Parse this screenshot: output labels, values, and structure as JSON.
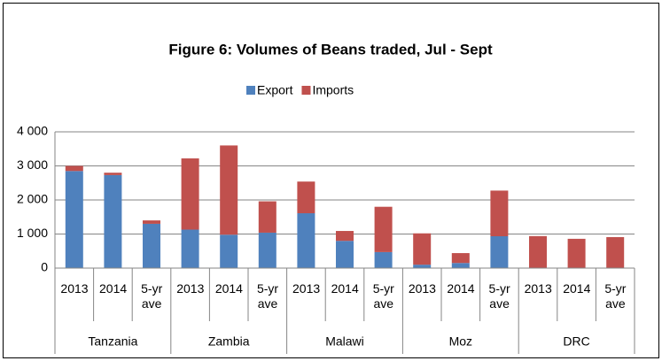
{
  "chart_data": {
    "type": "stacked_bar",
    "title": "Figure 6: Volumes of Beans traded, Jul - Sept",
    "categories": [
      "2013",
      "2014",
      "5-yr ave",
      "2013",
      "2014",
      "5-yr ave",
      "2013",
      "2014",
      "5-yr ave",
      "2013",
      "2014",
      "5-yr ave",
      "2013",
      "2014",
      "5-yr ave"
    ],
    "groups": [
      "Tanzania",
      "Zambia",
      "Malawi",
      "Moz",
      "DRC"
    ],
    "series": [
      {
        "name": "Export",
        "color": "#4f81bd",
        "values": [
          2850,
          2730,
          1300,
          1130,
          980,
          1040,
          1610,
          800,
          470,
          100,
          150,
          935,
          0,
          0,
          0
        ]
      },
      {
        "name": "Imports",
        "color": "#c0504d",
        "values": [
          150,
          70,
          100,
          2090,
          2620,
          920,
          930,
          290,
          1330,
          920,
          290,
          1340,
          940,
          860,
          910
        ]
      }
    ],
    "ylim": [
      0,
      4000
    ],
    "yticks": [
      0,
      {
        "value": 1000,
        "label": "1 000"
      },
      {
        "value": 2000,
        "label": "2 000"
      },
      {
        "value": 3000,
        "label": "3 000"
      },
      {
        "value": 4000,
        "label": "4 000"
      }
    ],
    "grid": true,
    "legend": "top"
  }
}
